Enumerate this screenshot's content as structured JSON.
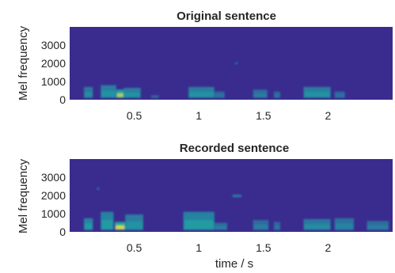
{
  "colors": {
    "background": "#3a2b8e",
    "low": "#3b3a9a",
    "mid": "#1fa2a4",
    "high": "#f2e52a",
    "axis_text": "#262626"
  },
  "chart_data": [
    {
      "type": "heatmap",
      "title": "Original sentence",
      "xlabel": "",
      "ylabel": "Mel frequency",
      "xlim": [
        0.0,
        2.5
      ],
      "ylim": [
        0,
        4000
      ],
      "xticks": [
        0.5,
        1,
        1.5,
        2
      ],
      "xtick_labels": [
        "0.5",
        "1",
        "1.5",
        "2"
      ],
      "yticks": [
        0,
        1000,
        2000,
        3000
      ],
      "ytick_labels": [
        "0",
        "1000",
        "2000",
        "3000"
      ],
      "colormap": "parula",
      "energy_regions": [
        {
          "t0": 0.11,
          "t1": 0.18,
          "f0": 100,
          "f1": 700,
          "level": 0.55
        },
        {
          "t0": 0.24,
          "t1": 0.36,
          "f0": 100,
          "f1": 800,
          "level": 0.6
        },
        {
          "t0": 0.36,
          "t1": 0.42,
          "f0": 100,
          "f1": 550,
          "level": 0.9
        },
        {
          "t0": 0.42,
          "t1": 0.55,
          "f0": 100,
          "f1": 650,
          "level": 0.6
        },
        {
          "t0": 0.63,
          "t1": 0.69,
          "f0": 100,
          "f1": 250,
          "level": 0.35
        },
        {
          "t0": 0.92,
          "t1": 1.12,
          "f0": 100,
          "f1": 700,
          "level": 0.6
        },
        {
          "t0": 1.12,
          "t1": 1.2,
          "f0": 100,
          "f1": 450,
          "level": 0.4
        },
        {
          "t0": 1.28,
          "t1": 1.3,
          "f0": 1950,
          "f1": 2050,
          "level": 0.5
        },
        {
          "t0": 1.42,
          "t1": 1.53,
          "f0": 100,
          "f1": 550,
          "level": 0.45
        },
        {
          "t0": 1.58,
          "t1": 1.63,
          "f0": 100,
          "f1": 450,
          "level": 0.4
        },
        {
          "t0": 1.81,
          "t1": 2.02,
          "f0": 100,
          "f1": 700,
          "level": 0.6
        },
        {
          "t0": 2.05,
          "t1": 2.13,
          "f0": 100,
          "f1": 450,
          "level": 0.4
        }
      ]
    },
    {
      "type": "heatmap",
      "title": "Recorded sentence",
      "xlabel": "time / s",
      "ylabel": "Mel frequency",
      "xlim": [
        0.0,
        2.5
      ],
      "ylim": [
        0,
        4000
      ],
      "xticks": [
        0.5,
        1,
        1.5,
        2
      ],
      "xtick_labels": [
        "0.5",
        "1",
        "1.5",
        "2"
      ],
      "yticks": [
        0,
        1000,
        2000,
        3000
      ],
      "ytick_labels": [
        "0",
        "1000",
        "2000",
        "3000"
      ],
      "colormap": "parula",
      "energy_regions": [
        {
          "t0": 0.11,
          "t1": 0.18,
          "f0": 100,
          "f1": 750,
          "level": 0.65
        },
        {
          "t0": 0.21,
          "t1": 0.23,
          "f0": 2300,
          "f1": 2450,
          "level": 0.35
        },
        {
          "t0": 0.24,
          "t1": 0.34,
          "f0": 100,
          "f1": 1100,
          "level": 0.65
        },
        {
          "t0": 0.35,
          "t1": 0.43,
          "f0": 100,
          "f1": 550,
          "level": 0.95
        },
        {
          "t0": 0.43,
          "t1": 0.57,
          "f0": 100,
          "f1": 950,
          "level": 0.6
        },
        {
          "t0": 0.88,
          "t1": 1.12,
          "f0": 100,
          "f1": 1100,
          "level": 0.65
        },
        {
          "t0": 1.12,
          "t1": 1.22,
          "f0": 100,
          "f1": 500,
          "level": 0.45
        },
        {
          "t0": 1.26,
          "t1": 1.33,
          "f0": 1900,
          "f1": 2050,
          "level": 0.5
        },
        {
          "t0": 1.42,
          "t1": 1.54,
          "f0": 100,
          "f1": 650,
          "level": 0.45
        },
        {
          "t0": 1.58,
          "t1": 1.63,
          "f0": 100,
          "f1": 550,
          "level": 0.4
        },
        {
          "t0": 1.81,
          "t1": 2.02,
          "f0": 100,
          "f1": 700,
          "level": 0.55
        },
        {
          "t0": 2.05,
          "t1": 2.2,
          "f0": 100,
          "f1": 750,
          "level": 0.5
        },
        {
          "t0": 2.3,
          "t1": 2.47,
          "f0": 100,
          "f1": 600,
          "level": 0.45
        }
      ]
    }
  ]
}
